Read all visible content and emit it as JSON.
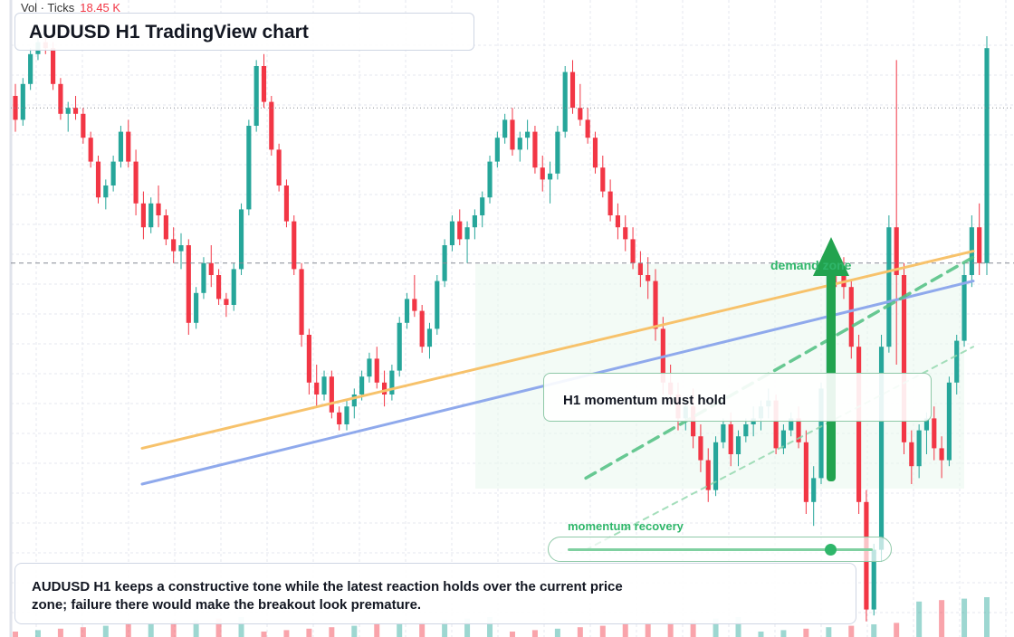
{
  "header": {
    "volume_label": "Vol · Ticks",
    "volume_value": "18.45 K",
    "title": "AUDUSD H1 TradingView chart"
  },
  "annotations": {
    "zone_label": "demand zone",
    "note": "H1 momentum must hold",
    "slider_label": "momentum recovery",
    "slider_level": 0.86,
    "caption": "AUDUSD H1 keeps a constructive tone while the latest reaction holds over the current price zone; failure there would make the breakout look premature."
  },
  "colors": {
    "up": "#26a69a",
    "down": "#f23645",
    "trendline_orange": "#f7c26b",
    "trendline_blue": "#8fa9ec",
    "accent_green": "#2fb66a"
  },
  "chart_data": {
    "type": "candlestick",
    "symbol": "AUDUSD",
    "timeframe": "H1",
    "ylim": [
      0,
      100
    ],
    "grid": true,
    "candles": [
      [
        90,
        92,
        84,
        86
      ],
      [
        86,
        93,
        85,
        92
      ],
      [
        92,
        98,
        91,
        97
      ],
      [
        97,
        100,
        96,
        99
      ],
      [
        99,
        100,
        97,
        98
      ],
      [
        98,
        99,
        91,
        92
      ],
      [
        92,
        93,
        86,
        87
      ],
      [
        87,
        89,
        84,
        88
      ],
      [
        88,
        90,
        86,
        87
      ],
      [
        87,
        88,
        82,
        83
      ],
      [
        83,
        84,
        78,
        79
      ],
      [
        79,
        80,
        72,
        73
      ],
      [
        73,
        76,
        71,
        75
      ],
      [
        75,
        80,
        74,
        79
      ],
      [
        79,
        85,
        78,
        84
      ],
      [
        84,
        86,
        78,
        79
      ],
      [
        79,
        81,
        70,
        72
      ],
      [
        72,
        74,
        66,
        68
      ],
      [
        68,
        73,
        67,
        72
      ],
      [
        72,
        75,
        68,
        70
      ],
      [
        70,
        71,
        65,
        66
      ],
      [
        66,
        68,
        62,
        64
      ],
      [
        64,
        67,
        61,
        65
      ],
      [
        65,
        66,
        50,
        52
      ],
      [
        52,
        58,
        51,
        57
      ],
      [
        57,
        63,
        56,
        62
      ],
      [
        62,
        65,
        58,
        60
      ],
      [
        60,
        61,
        55,
        56
      ],
      [
        56,
        57,
        53,
        55
      ],
      [
        55,
        62,
        54,
        61
      ],
      [
        61,
        72,
        60,
        71
      ],
      [
        71,
        86,
        70,
        85
      ],
      [
        85,
        96,
        84,
        95
      ],
      [
        95,
        97,
        88,
        89
      ],
      [
        89,
        90,
        80,
        81
      ],
      [
        81,
        82,
        74,
        75
      ],
      [
        75,
        76,
        68,
        69
      ],
      [
        69,
        70,
        60,
        61
      ],
      [
        61,
        62,
        48,
        50
      ],
      [
        50,
        51,
        40,
        42
      ],
      [
        42,
        45,
        38,
        40
      ],
      [
        40,
        44,
        39,
        43
      ],
      [
        43,
        44,
        36,
        37
      ],
      [
        37,
        38,
        34,
        35
      ],
      [
        35,
        39,
        34,
        38
      ],
      [
        38,
        41,
        36,
        40
      ],
      [
        40,
        44,
        39,
        43
      ],
      [
        43,
        47,
        42,
        46
      ],
      [
        46,
        48,
        41,
        42
      ],
      [
        42,
        44,
        38,
        40
      ],
      [
        40,
        45,
        39,
        44
      ],
      [
        44,
        53,
        43,
        52
      ],
      [
        52,
        57,
        51,
        56
      ],
      [
        56,
        60,
        53,
        54
      ],
      [
        54,
        55,
        47,
        48
      ],
      [
        48,
        52,
        46,
        51
      ],
      [
        51,
        60,
        50,
        59
      ],
      [
        59,
        66,
        58,
        65
      ],
      [
        65,
        70,
        64,
        69
      ],
      [
        69,
        71,
        65,
        66
      ],
      [
        66,
        69,
        62,
        68
      ],
      [
        68,
        71,
        66,
        70
      ],
      [
        70,
        74,
        68,
        73
      ],
      [
        73,
        80,
        72,
        79
      ],
      [
        79,
        84,
        78,
        83
      ],
      [
        83,
        87,
        82,
        86
      ],
      [
        86,
        88,
        80,
        81
      ],
      [
        81,
        84,
        79,
        83
      ],
      [
        83,
        86,
        81,
        84
      ],
      [
        84,
        85,
        77,
        78
      ],
      [
        78,
        80,
        74,
        76
      ],
      [
        76,
        79,
        72,
        77
      ],
      [
        77,
        85,
        76,
        84
      ],
      [
        84,
        95,
        83,
        94
      ],
      [
        94,
        96,
        87,
        88
      ],
      [
        88,
        92,
        85,
        86
      ],
      [
        86,
        88,
        82,
        83
      ],
      [
        83,
        84,
        77,
        78
      ],
      [
        78,
        80,
        73,
        74
      ],
      [
        74,
        76,
        69,
        70
      ],
      [
        70,
        72,
        66,
        68
      ],
      [
        68,
        70,
        64,
        66
      ],
      [
        66,
        68,
        61,
        62
      ],
      [
        62,
        64,
        58,
        60
      ],
      [
        60,
        63,
        56,
        59
      ],
      [
        59,
        61,
        49,
        51
      ],
      [
        51,
        53,
        40,
        42
      ],
      [
        42,
        45,
        38,
        40
      ],
      [
        40,
        42,
        34,
        36
      ],
      [
        36,
        39,
        34,
        38
      ],
      [
        38,
        41,
        31,
        33
      ],
      [
        33,
        35,
        27,
        29
      ],
      [
        29,
        31,
        22,
        24
      ],
      [
        24,
        33,
        23,
        32
      ],
      [
        32,
        36,
        31,
        35
      ],
      [
        35,
        37,
        28,
        30
      ],
      [
        30,
        34,
        28,
        33
      ],
      [
        33,
        36,
        32,
        35
      ],
      [
        35,
        38,
        33,
        36
      ],
      [
        36,
        39,
        34,
        38
      ],
      [
        38,
        41,
        36,
        39
      ],
      [
        39,
        40,
        30,
        31
      ],
      [
        31,
        35,
        30,
        34
      ],
      [
        34,
        37,
        33,
        36
      ],
      [
        36,
        38,
        31,
        32
      ],
      [
        32,
        34,
        20,
        22
      ],
      [
        22,
        28,
        18,
        26
      ],
      [
        26,
        42,
        25,
        41
      ],
      [
        41,
        62,
        40,
        61
      ],
      [
        61,
        64,
        58,
        60
      ],
      [
        60,
        63,
        56,
        58
      ],
      [
        58,
        59,
        46,
        48
      ],
      [
        48,
        50,
        20,
        22
      ],
      [
        22,
        24,
        2,
        4
      ],
      [
        4,
        15,
        3,
        14
      ],
      [
        14,
        50,
        12,
        48
      ],
      [
        48,
        70,
        47,
        68
      ],
      [
        68,
        96,
        45,
        60
      ],
      [
        60,
        62,
        30,
        32
      ],
      [
        32,
        34,
        25,
        28
      ],
      [
        28,
        35,
        26,
        34
      ],
      [
        34,
        37,
        30,
        36
      ],
      [
        36,
        38,
        29,
        31
      ],
      [
        31,
        33,
        26,
        29
      ],
      [
        29,
        43,
        28,
        42
      ],
      [
        42,
        50,
        40,
        49
      ],
      [
        49,
        62,
        48,
        60
      ],
      [
        60,
        70,
        58,
        68
      ],
      [
        68,
        72,
        60,
        62
      ],
      [
        62,
        100,
        60,
        98
      ]
    ],
    "horizontal_levels": [
      {
        "value": 62,
        "style": "dashed",
        "label": ""
      },
      {
        "value": 88,
        "style": "dotted",
        "label": ""
      }
    ],
    "trendlines": [
      {
        "color": "orange",
        "from": [
          0,
          31
        ],
        "to": [
          118,
          64
        ]
      },
      {
        "color": "blue",
        "from": [
          0,
          25
        ],
        "to": [
          118,
          59
        ]
      },
      {
        "color": "green-dashed",
        "from": [
          63,
          26
        ],
        "to": [
          118,
          63
        ]
      },
      {
        "color": "green-thin",
        "from": [
          63,
          14
        ],
        "to": [
          118,
          48
        ]
      }
    ]
  }
}
